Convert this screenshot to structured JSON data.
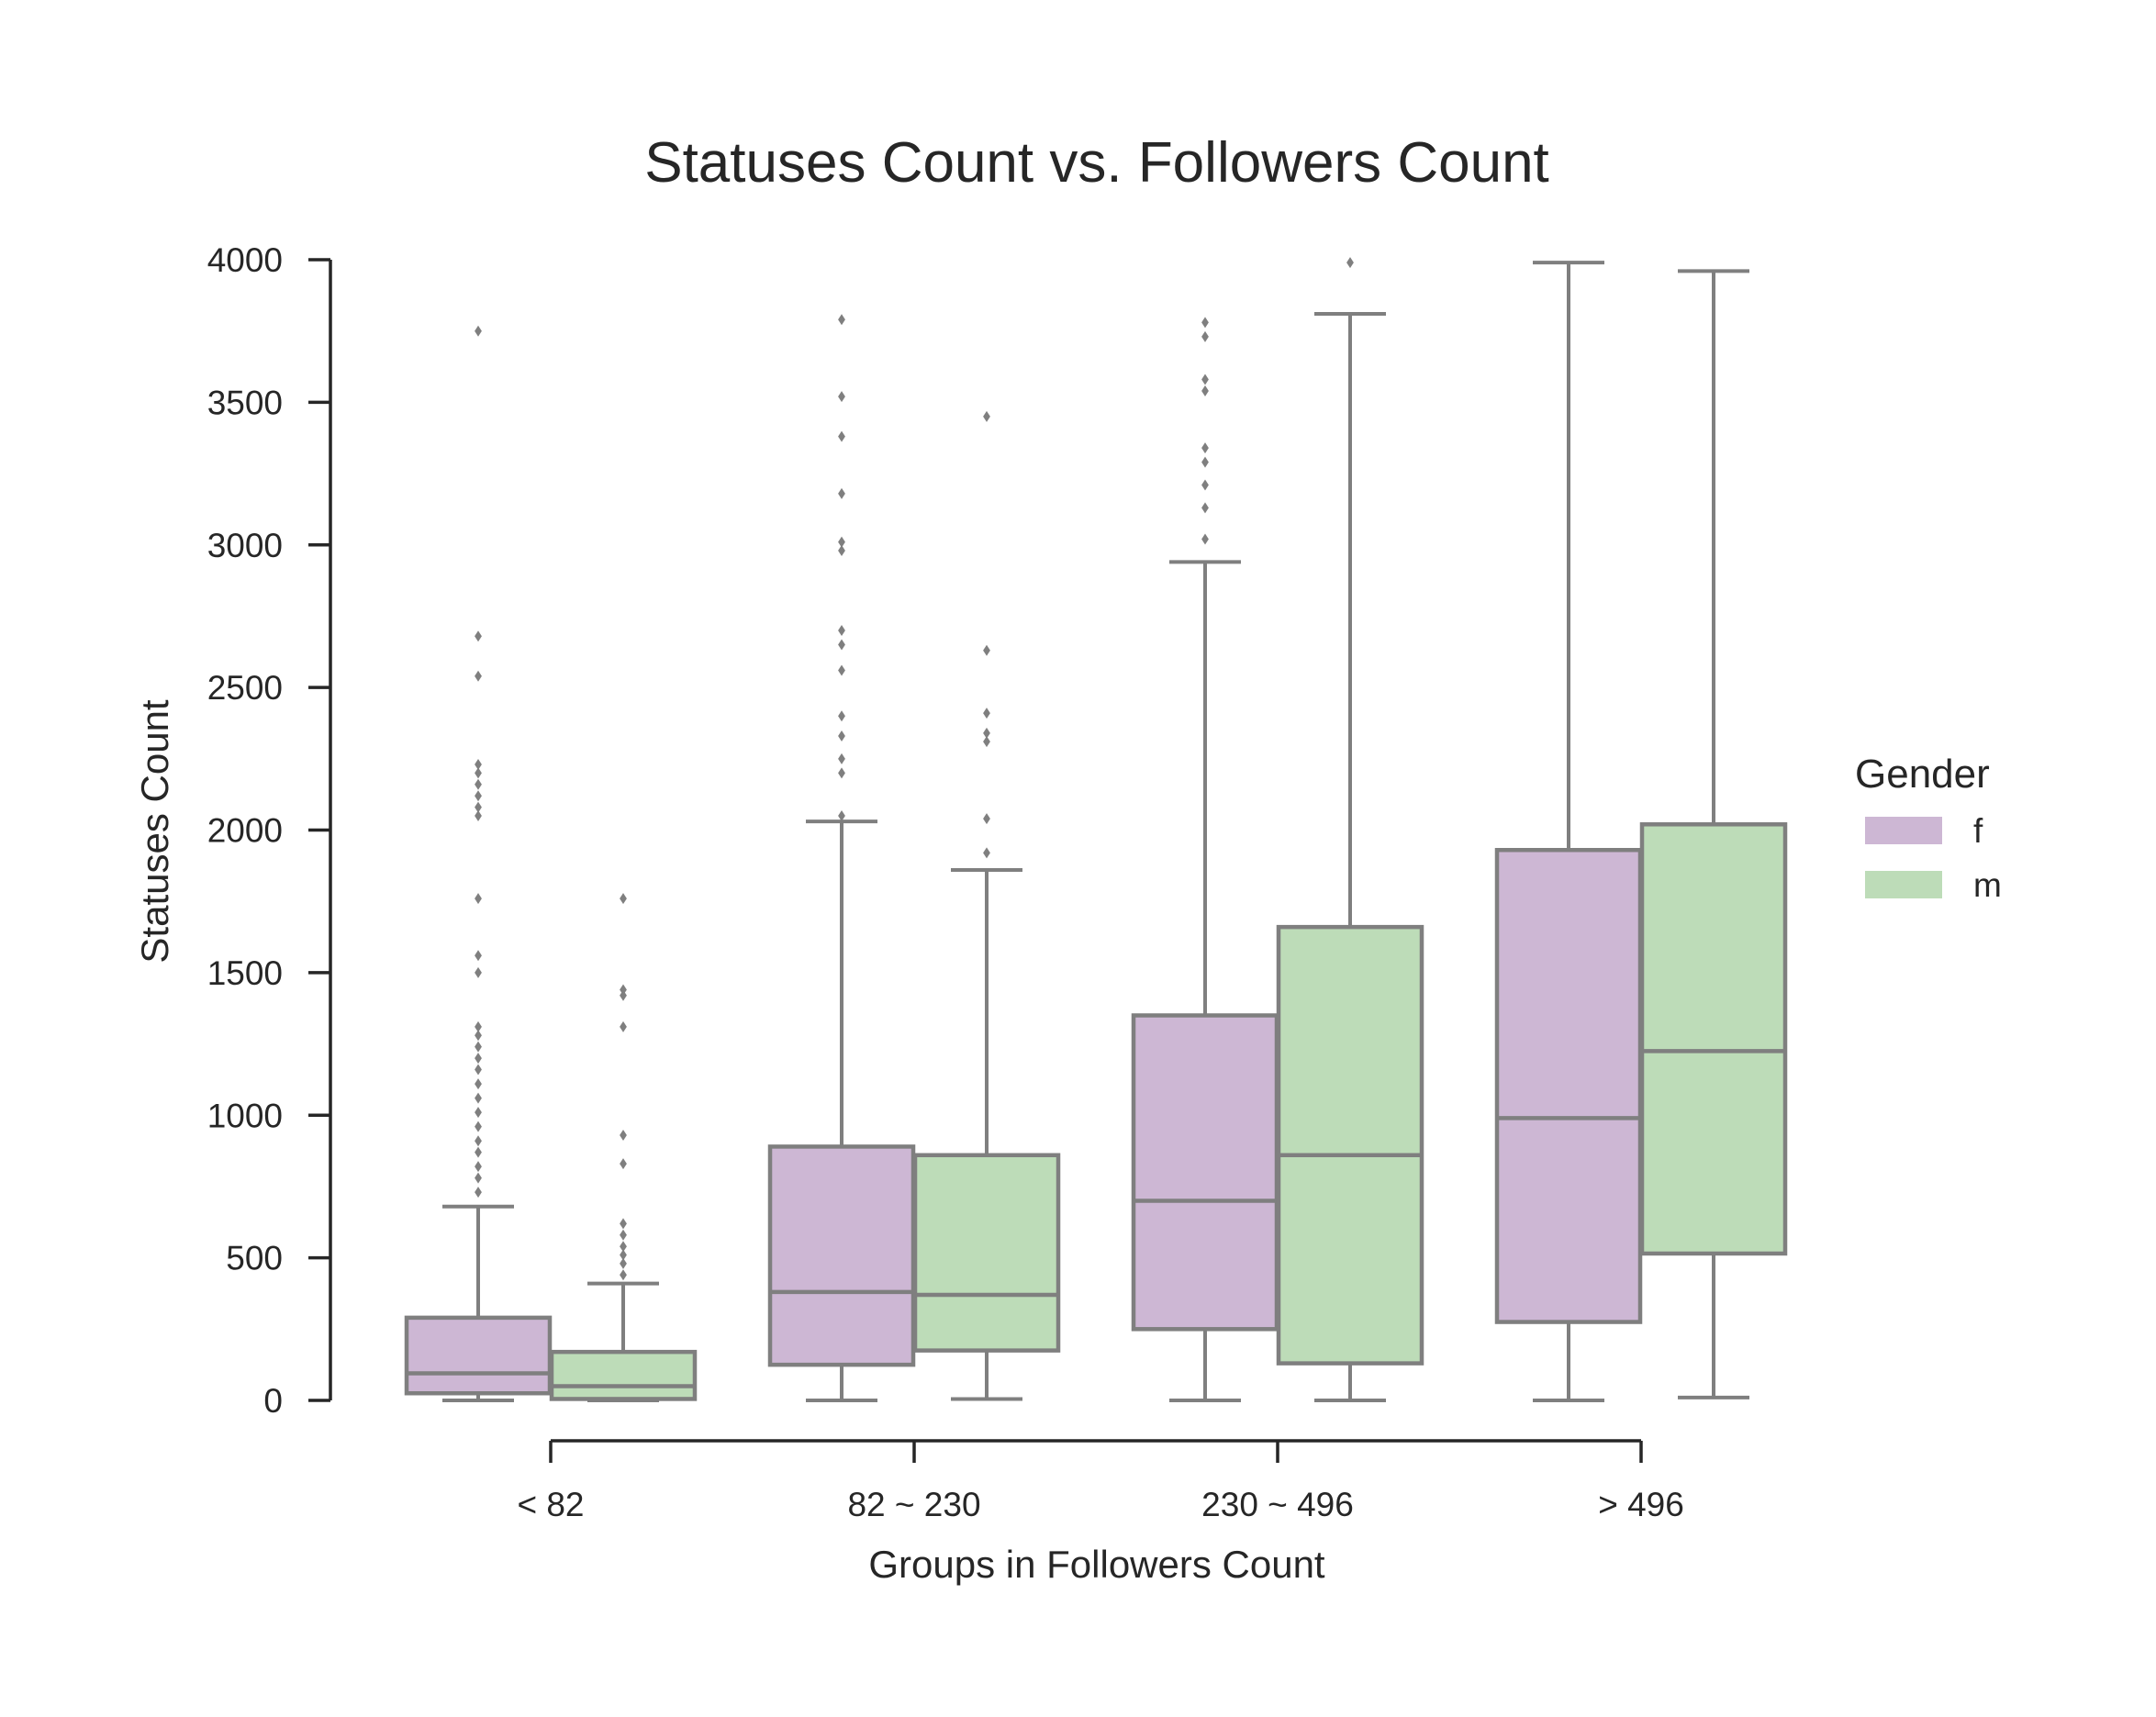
{
  "chart_data": {
    "type": "box",
    "title": "Statuses Count vs. Followers Count",
    "xlabel": "Groups in Followers Count",
    "ylabel": "Statuses Count",
    "categories": [
      "< 82",
      "82 ~ 230",
      "230 ~ 496",
      "> 496"
    ],
    "ylim": [
      0,
      4000
    ],
    "yticks": [
      0,
      500,
      1000,
      1500,
      2000,
      2500,
      3000,
      3500,
      4000
    ],
    "legend": {
      "title": "Gender",
      "position": "right"
    },
    "series": [
      {
        "name": "f",
        "color": "#cdb7d4",
        "boxes": [
          {
            "whisker_low": 0,
            "q1": 25,
            "median": 95,
            "q3": 290,
            "whisker_high": 680,
            "outliers": [
              730,
              780,
              820,
              870,
              910,
              960,
              1010,
              1060,
              1110,
              1160,
              1200,
              1240,
              1280,
              1310,
              1500,
              1560,
              1760,
              2050,
              2080,
              2120,
              2160,
              2200,
              2230,
              2540,
              2680,
              3750
            ]
          },
          {
            "whisker_low": 0,
            "q1": 125,
            "median": 380,
            "q3": 890,
            "whisker_high": 2030,
            "outliers": [
              2050,
              2200,
              2250,
              2330,
              2400,
              2560,
              2650,
              2700,
              2980,
              3010,
              3180,
              3380,
              3520,
              3790
            ]
          },
          {
            "whisker_low": 0,
            "q1": 250,
            "median": 700,
            "q3": 1350,
            "whisker_high": 2940,
            "outliers": [
              3020,
              3130,
              3210,
              3290,
              3340,
              3540,
              3580,
              3730,
              3780
            ]
          },
          {
            "whisker_low": 0,
            "q1": 275,
            "median": 990,
            "q3": 1930,
            "whisker_high": 3990,
            "outliers": []
          }
        ]
      },
      {
        "name": "m",
        "color": "#bddcb8",
        "boxes": [
          {
            "whisker_low": 0,
            "q1": 5,
            "median": 50,
            "q3": 170,
            "whisker_high": 410,
            "outliers": [
              440,
              480,
              510,
              540,
              580,
              620,
              830,
              930,
              1310,
              1420,
              1440,
              1760
            ]
          },
          {
            "whisker_low": 5,
            "q1": 175,
            "median": 370,
            "q3": 860,
            "whisker_high": 1860,
            "outliers": [
              1920,
              2040,
              2310,
              2340,
              2410,
              2630,
              3450
            ]
          },
          {
            "whisker_low": 0,
            "q1": 130,
            "median": 860,
            "q3": 1660,
            "whisker_high": 3810,
            "outliers": [
              3990
            ]
          },
          {
            "whisker_low": 10,
            "q1": 515,
            "median": 1225,
            "q3": 2020,
            "whisker_high": 3960,
            "outliers": []
          }
        ]
      }
    ]
  }
}
